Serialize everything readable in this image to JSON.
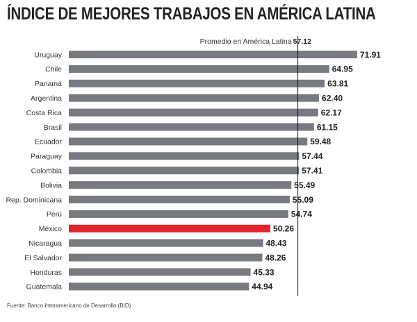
{
  "title": "ÍNDICE DE MEJORES TRABAJOS EN AMÉRICA LATINA",
  "source": "Fuente: Banco Interamericano de Desarrollo (BID)",
  "colors": {
    "bar": "#777b80",
    "highlight": "#e3242b",
    "avg_line": "#111111"
  },
  "chart_data": {
    "type": "bar",
    "orientation": "horizontal",
    "categories": [
      "Uruguay",
      "Chile",
      "Panamá",
      "Argentina",
      "Costa Rica",
      "Brasil",
      "Ecuador",
      "Paraguay",
      "Colombia",
      "Bolivia",
      "Rep. Dominicana",
      "Perú",
      "México",
      "Nicaragua",
      "El Salvador",
      "Honduras",
      "Guatemala"
    ],
    "values": [
      71.91,
      64.95,
      63.81,
      62.4,
      62.17,
      61.15,
      59.48,
      57.44,
      57.41,
      55.49,
      55.09,
      54.74,
      50.26,
      48.43,
      48.26,
      45.33,
      44.94
    ],
    "value_labels": [
      "71.91",
      "64.95",
      "63.81",
      "62.40",
      "62.17",
      "61.15",
      "59.48",
      "57.44",
      "57.41",
      "55.49",
      "55.09",
      "54.74",
      "50.26",
      "48.43",
      "48.26",
      "45.33",
      "44.94"
    ],
    "highlight": "México",
    "reference_line": {
      "label": "Promedio en América Latina",
      "value": 57.12,
      "value_label": "57.12"
    },
    "grid": false,
    "legend": "none"
  }
}
